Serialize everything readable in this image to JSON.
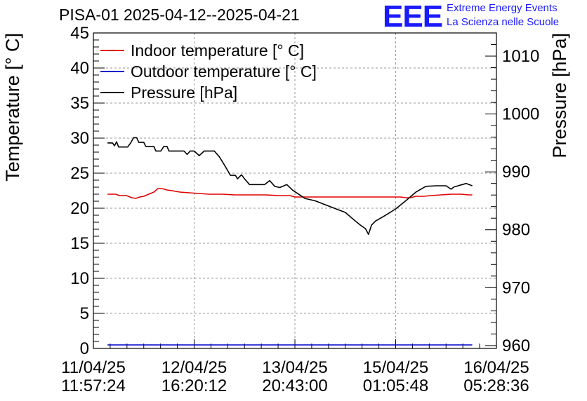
{
  "title": "PISA-01 2025-04-12--2025-04-21",
  "logo": {
    "letters": "EEE",
    "line1": "Extreme Energy Events",
    "line2": "La Scienza nelle Scuole",
    "color": "#1a1aff"
  },
  "chart_data": {
    "type": "line",
    "title": "PISA-01 2025-04-12--2025-04-21",
    "xlabel": "",
    "ylabel": "Temperature [° C]",
    "y2label": "Pressure [hPa]",
    "ylim": [
      0,
      45
    ],
    "y2lim": [
      959.5,
      1014
    ],
    "xlim": [
      0,
      4
    ],
    "grid": true,
    "legend_position": "top-left",
    "y_ticks": [
      0,
      5,
      10,
      15,
      20,
      25,
      30,
      35,
      40,
      45
    ],
    "y2_ticks": [
      960,
      970,
      980,
      990,
      1000,
      1010
    ],
    "x_ticks": [
      {
        "x": 0,
        "date": "11/04/25",
        "time": "11:57:24"
      },
      {
        "x": 1,
        "date": "12/04/25",
        "time": "16:20:12"
      },
      {
        "x": 2,
        "date": "13/04/25",
        "time": "20:43:00"
      },
      {
        "x": 3,
        "date": "15/04/25",
        "time": "01:05:48"
      },
      {
        "x": 4,
        "date": "16/04/25",
        "time": "05:28:36"
      }
    ],
    "series": [
      {
        "name": "Indoor temperature [° C]",
        "axis": "left",
        "color": "#e00000",
        "points": [
          [
            0.14,
            22.0
          ],
          [
            0.22,
            22.0
          ],
          [
            0.26,
            21.8
          ],
          [
            0.33,
            21.8
          ],
          [
            0.38,
            21.5
          ],
          [
            0.42,
            21.4
          ],
          [
            0.46,
            21.6
          ],
          [
            0.5,
            21.7
          ],
          [
            0.55,
            22.0
          ],
          [
            0.6,
            22.3
          ],
          [
            0.64,
            22.8
          ],
          [
            0.68,
            22.8
          ],
          [
            0.73,
            22.6
          ],
          [
            0.78,
            22.5
          ],
          [
            0.86,
            22.3
          ],
          [
            0.95,
            22.2
          ],
          [
            1.05,
            22.1
          ],
          [
            1.15,
            22.0
          ],
          [
            1.28,
            22.0
          ],
          [
            1.4,
            21.9
          ],
          [
            1.55,
            21.9
          ],
          [
            1.7,
            21.9
          ],
          [
            1.85,
            21.8
          ],
          [
            1.95,
            21.8
          ],
          [
            2.0,
            21.6
          ],
          [
            2.1,
            21.6
          ],
          [
            2.2,
            21.6
          ],
          [
            2.35,
            21.6
          ],
          [
            2.5,
            21.6
          ],
          [
            2.65,
            21.6
          ],
          [
            2.8,
            21.6
          ],
          [
            2.95,
            21.6
          ],
          [
            3.05,
            21.6
          ],
          [
            3.1,
            21.5
          ],
          [
            3.15,
            21.5
          ],
          [
            3.2,
            21.7
          ],
          [
            3.28,
            21.7
          ],
          [
            3.35,
            21.8
          ],
          [
            3.45,
            21.9
          ],
          [
            3.55,
            22.0
          ],
          [
            3.65,
            22.0
          ],
          [
            3.72,
            21.9
          ],
          [
            3.76,
            21.9
          ]
        ]
      },
      {
        "name": "Outdoor temperature [° C]",
        "axis": "left",
        "color": "#0000cc",
        "points": [
          [
            0.14,
            0.5
          ],
          [
            3.76,
            0.5
          ]
        ]
      },
      {
        "name": "Pressure [hPa]",
        "axis": "right",
        "color": "#000000",
        "points": [
          [
            0.14,
            995.0
          ],
          [
            0.19,
            995.0
          ],
          [
            0.21,
            994.5
          ],
          [
            0.23,
            995.2
          ],
          [
            0.25,
            994.3
          ],
          [
            0.34,
            994.3
          ],
          [
            0.37,
            995.0
          ],
          [
            0.4,
            995.9
          ],
          [
            0.43,
            995.9
          ],
          [
            0.45,
            995.1
          ],
          [
            0.5,
            995.1
          ],
          [
            0.52,
            994.4
          ],
          [
            0.6,
            994.4
          ],
          [
            0.62,
            993.6
          ],
          [
            0.67,
            993.6
          ],
          [
            0.7,
            994.4
          ],
          [
            0.73,
            994.4
          ],
          [
            0.75,
            993.6
          ],
          [
            0.9,
            993.6
          ],
          [
            0.93,
            993.0
          ],
          [
            0.96,
            993.6
          ],
          [
            1.0,
            993.6
          ],
          [
            1.05,
            992.8
          ],
          [
            1.1,
            993.6
          ],
          [
            1.2,
            993.6
          ],
          [
            1.25,
            992.6
          ],
          [
            1.3,
            991.2
          ],
          [
            1.36,
            989.4
          ],
          [
            1.41,
            989.4
          ],
          [
            1.43,
            988.8
          ],
          [
            1.47,
            989.5
          ],
          [
            1.5,
            988.8
          ],
          [
            1.55,
            987.8
          ],
          [
            1.7,
            987.8
          ],
          [
            1.75,
            988.5
          ],
          [
            1.8,
            987.5
          ],
          [
            1.85,
            987.3
          ],
          [
            1.92,
            987.8
          ],
          [
            1.98,
            986.8
          ],
          [
            2.05,
            986.0
          ],
          [
            2.1,
            985.4
          ],
          [
            2.2,
            985.0
          ],
          [
            2.35,
            984.0
          ],
          [
            2.5,
            983.0
          ],
          [
            2.6,
            981.5
          ],
          [
            2.65,
            980.8
          ],
          [
            2.7,
            980.2
          ],
          [
            2.73,
            979.2
          ],
          [
            2.76,
            980.8
          ],
          [
            2.8,
            981.5
          ],
          [
            2.9,
            982.5
          ],
          [
            3.0,
            983.6
          ],
          [
            3.1,
            985.0
          ],
          [
            3.2,
            986.5
          ],
          [
            3.3,
            987.5
          ],
          [
            3.4,
            987.6
          ],
          [
            3.5,
            987.6
          ],
          [
            3.55,
            987.0
          ],
          [
            3.58,
            987.4
          ],
          [
            3.62,
            987.6
          ],
          [
            3.66,
            987.8
          ],
          [
            3.7,
            988.0
          ],
          [
            3.76,
            987.6
          ]
        ]
      }
    ]
  }
}
